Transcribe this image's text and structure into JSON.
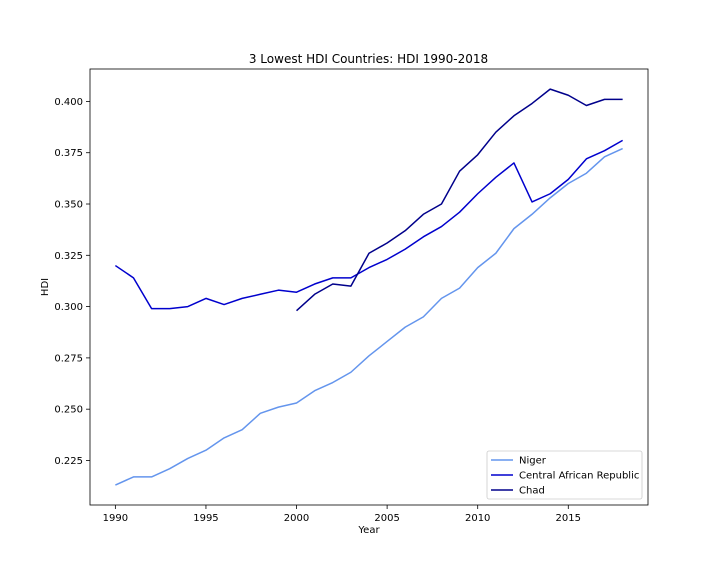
{
  "chart_data": {
    "type": "line",
    "title": "3 Lowest HDI Countries: HDI 1990-2018",
    "xlabel": "Year",
    "ylabel": "HDI",
    "xlim": [
      1988.6,
      2019.4
    ],
    "ylim": [
      0.2033,
      0.4158
    ],
    "x_ticks": [
      1990,
      1995,
      2000,
      2005,
      2010,
      2015
    ],
    "y_ticks": [
      0.225,
      0.25,
      0.275,
      0.3,
      0.325,
      0.35,
      0.375,
      0.4
    ],
    "y_tick_labels": [
      "0.225",
      "0.250",
      "0.275",
      "0.300",
      "0.325",
      "0.350",
      "0.375",
      "0.400"
    ],
    "grid": false,
    "legend_position": "lower-right",
    "series": [
      {
        "name": "Niger",
        "color": "#6495ED",
        "x": [
          1990,
          1991,
          1992,
          1993,
          1994,
          1995,
          1996,
          1997,
          1998,
          1999,
          2000,
          2001,
          2002,
          2003,
          2004,
          2005,
          2006,
          2007,
          2008,
          2009,
          2010,
          2011,
          2012,
          2013,
          2014,
          2015,
          2016,
          2017,
          2018
        ],
        "values": [
          0.213,
          0.217,
          0.217,
          0.221,
          0.226,
          0.23,
          0.236,
          0.24,
          0.248,
          0.251,
          0.253,
          0.259,
          0.263,
          0.268,
          0.276,
          0.283,
          0.29,
          0.295,
          0.304,
          0.309,
          0.319,
          0.326,
          0.338,
          0.345,
          0.353,
          0.36,
          0.365,
          0.373,
          0.377
        ]
      },
      {
        "name": "Central African Republic",
        "color": "#0000CD",
        "x": [
          1990,
          1991,
          1992,
          1993,
          1994,
          1995,
          1996,
          1997,
          1998,
          1999,
          2000,
          2001,
          2002,
          2003,
          2004,
          2005,
          2006,
          2007,
          2008,
          2009,
          2010,
          2011,
          2012,
          2013,
          2014,
          2015,
          2016,
          2017,
          2018
        ],
        "values": [
          0.32,
          0.314,
          0.299,
          0.299,
          0.3,
          0.304,
          0.301,
          0.304,
          0.306,
          0.308,
          0.307,
          0.311,
          0.314,
          0.314,
          0.319,
          0.323,
          0.328,
          0.334,
          0.339,
          0.346,
          0.355,
          0.363,
          0.37,
          0.351,
          0.355,
          0.362,
          0.372,
          0.376,
          0.381
        ]
      },
      {
        "name": "Chad",
        "color": "#00008B",
        "x": [
          2000,
          2001,
          2002,
          2003,
          2004,
          2005,
          2006,
          2007,
          2008,
          2009,
          2010,
          2011,
          2012,
          2013,
          2014,
          2015,
          2016,
          2017,
          2018
        ],
        "values": [
          0.298,
          0.306,
          0.311,
          0.31,
          0.326,
          0.331,
          0.337,
          0.345,
          0.35,
          0.366,
          0.374,
          0.385,
          0.393,
          0.399,
          0.406,
          0.403,
          0.398,
          0.401,
          0.401
        ]
      }
    ]
  }
}
